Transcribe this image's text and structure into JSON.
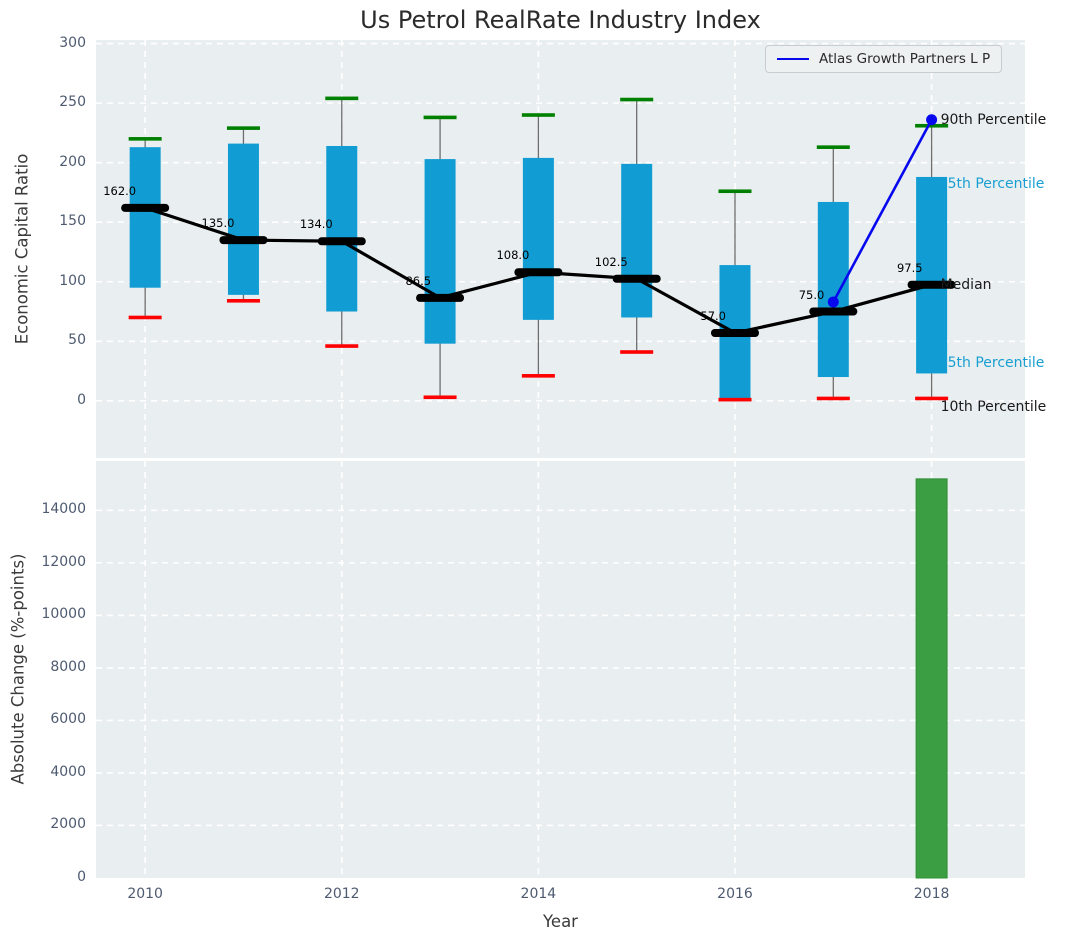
{
  "title": "Us Petrol RealRate Industry Index",
  "legend": {
    "label": "Atlas Growth Partners L P"
  },
  "colors": {
    "axes_background": "#e9eef0",
    "grid": "#ffffff",
    "box_fill": "#119dd3",
    "whisker": "#6e6e6e",
    "cap_high_green": "#008000",
    "cap_low_red": "#ff0000",
    "median_black": "#000000",
    "fund_blue": "#0808ef",
    "bar_green": "#3b9e42",
    "tick_text": "#4e5a70",
    "cyan_label": "#189fd1"
  },
  "chart_data": [
    {
      "type": "boxplot",
      "title": "Us Petrol RealRate Industry Index",
      "ylabel": "Economic Capital Ratio",
      "ylim": [
        -48,
        303
      ],
      "yticks": [
        0,
        50,
        100,
        150,
        200,
        250,
        300
      ],
      "xticks": [
        2010,
        2012,
        2014,
        2016,
        2018
      ],
      "xlim": [
        2009.5,
        2018.95
      ],
      "grid": true,
      "legend_position": "upper right",
      "years": [
        2010,
        2011,
        2012,
        2013,
        2014,
        2015,
        2016,
        2017,
        2018
      ],
      "p10": [
        70,
        84,
        46,
        3,
        21,
        41,
        1,
        2,
        2
      ],
      "p25": [
        95,
        89,
        75,
        48,
        68,
        70,
        2,
        20,
        23
      ],
      "median": [
        162.0,
        135.0,
        134.0,
        86.5,
        108.0,
        102.5,
        57.0,
        75.0,
        97.5
      ],
      "p75": [
        213,
        216,
        214,
        203,
        204,
        199,
        114,
        167,
        188
      ],
      "p90": [
        220,
        229,
        254,
        238,
        240,
        253,
        176,
        213,
        231
      ],
      "median_labels": [
        "162.0",
        "135.0",
        "134.0",
        "86.5",
        "108.0",
        "102.5",
        "57.0",
        "75.0",
        "97.5"
      ],
      "fund_series": {
        "name": "Atlas Growth Partners L P",
        "x": [
          2017,
          2018
        ],
        "y": [
          83,
          236
        ]
      },
      "side_labels": [
        {
          "text": "90th Percentile",
          "value": 236,
          "color": "black"
        },
        {
          "text": "5th Percentile",
          "value": 182,
          "color": "cyan"
        },
        {
          "text": "Median",
          "value": 97.5,
          "color": "black"
        },
        {
          "text": "5th Percentile",
          "value": 32,
          "color": "cyan"
        },
        {
          "text": "10th Percentile",
          "value": -5,
          "color": "black"
        }
      ]
    },
    {
      "type": "bar",
      "ylabel": "Absolute Change (%-points)",
      "xlabel": "Year",
      "ylim": [
        0,
        15880
      ],
      "yticks": [
        0,
        2000,
        4000,
        6000,
        8000,
        10000,
        12000,
        14000
      ],
      "xticks": [
        2010,
        2012,
        2014,
        2016,
        2018
      ],
      "xlim": [
        2009.5,
        2018.95
      ],
      "grid": true,
      "categories": [
        2018
      ],
      "values": [
        15200
      ]
    }
  ]
}
